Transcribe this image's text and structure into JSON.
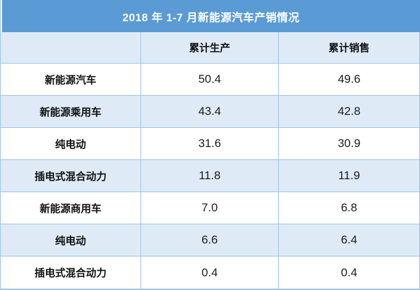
{
  "title": "2018 年 1-7 月新能源汽车产销情况",
  "colors": {
    "title_bg": "#5B9BD5",
    "title_text": "#FFFFFF",
    "row_alt_bg": "#DEEBF7",
    "border": "#9DC3E6",
    "text": "#1F1F1F"
  },
  "chart_data": {
    "type": "table",
    "title": "2018 年 1-7 月新能源汽车产销情况",
    "unit_hint": "万辆 (implied, not shown)",
    "columns": [
      "",
      "累计生产",
      "累计销售"
    ],
    "rows": [
      {
        "label": "新能源汽车",
        "production": "50.4",
        "sales": "49.6"
      },
      {
        "label": "新能源乘用车",
        "production": "43.4",
        "sales": "42.8"
      },
      {
        "label": "纯电动",
        "production": "31.6",
        "sales": "30.9"
      },
      {
        "label": "插电式混合动力",
        "production": "11.8",
        "sales": "11.9"
      },
      {
        "label": "新能源商用车",
        "production": "7.0",
        "sales": "6.8"
      },
      {
        "label": "纯电动",
        "production": "6.6",
        "sales": "6.4"
      },
      {
        "label": "插电式混合动力",
        "production": "0.4",
        "sales": "0.4"
      }
    ]
  }
}
